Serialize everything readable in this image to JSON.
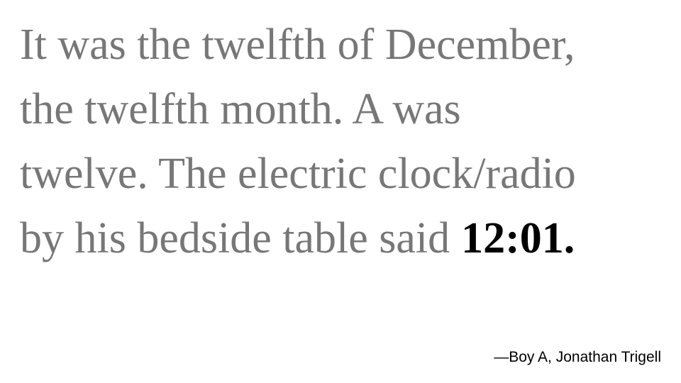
{
  "quote": {
    "lines": [
      "It was the twelfth of December,",
      "the twelfth month. A was",
      "twelve. The electric clock/radio",
      "by his bedside table said"
    ],
    "time": "12:01."
  },
  "attribution": "—Boy A, Jonathan Trigell"
}
